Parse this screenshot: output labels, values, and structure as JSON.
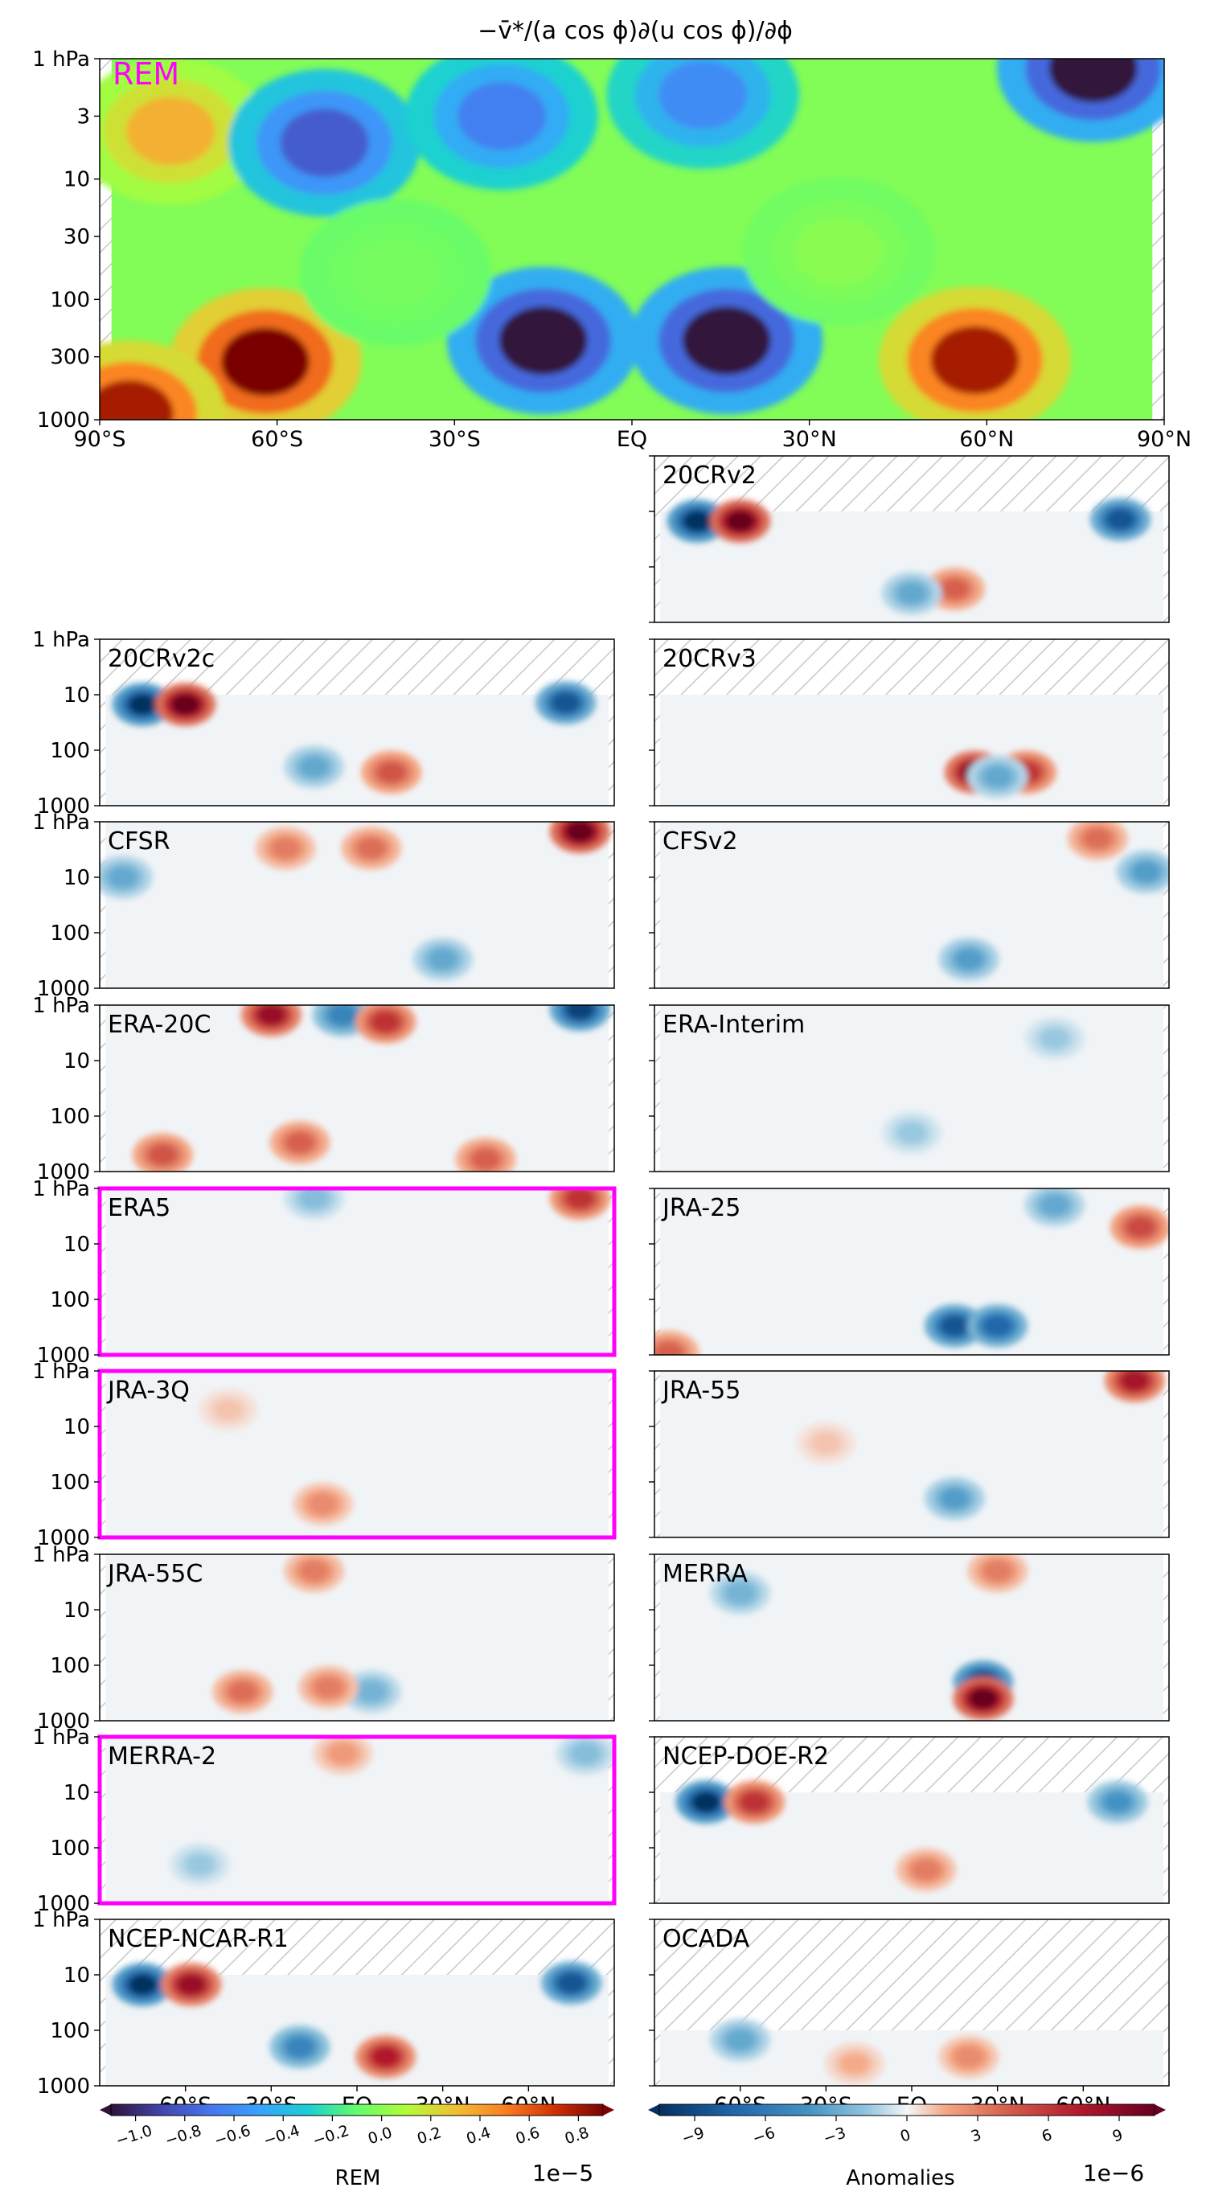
{
  "chart_data": {
    "type": "heatmap",
    "title": "−v̄*/(a cos ϕ)∂(u cos ϕ)/∂ϕ",
    "x_ticks": [
      "90°S",
      "60°S",
      "30°S",
      "EQ",
      "30°N",
      "60°N",
      "90°N"
    ],
    "x_ticks_small": [
      "60°S",
      "30°S",
      "EQ",
      "30°N",
      "60°N"
    ],
    "y_ticks": [
      "1 hPa",
      "3",
      "10",
      "30",
      "100",
      "300",
      "1000"
    ],
    "y_ticks_small": [
      "1 hPa",
      "10",
      "100",
      "1000"
    ],
    "ylim_hPa": [
      1000,
      1
    ],
    "y_scale": "log",
    "xlim_lat": [
      -90,
      90
    ],
    "main_panel": {
      "label": "REM",
      "blobs": [
        {
          "lat": -78,
          "p": 4,
          "v": 0.45
        },
        {
          "lat": -52,
          "p": 5,
          "v": -0.7
        },
        {
          "lat": -22,
          "p": 3,
          "v": -0.55
        },
        {
          "lat": 12,
          "p": 2,
          "v": -0.5
        },
        {
          "lat": 78,
          "p": 1.2,
          "v": -1.0
        },
        {
          "lat": -15,
          "p": 220,
          "v": -1.0
        },
        {
          "lat": 16,
          "p": 220,
          "v": -1.0
        },
        {
          "lat": -62,
          "p": 330,
          "v": 1.0
        },
        {
          "lat": -85,
          "p": 900,
          "v": 0.9
        },
        {
          "lat": 58,
          "p": 320,
          "v": 0.9
        },
        {
          "lat": 35,
          "p": 40,
          "v": 0.1
        },
        {
          "lat": -40,
          "p": 60,
          "v": 0.05
        }
      ]
    },
    "panels": [
      {
        "name": "20CRv2",
        "highlight": false,
        "top_hPa": 10,
        "blobs": [
          {
            "lat": -75,
            "p": 15,
            "v": -1.0
          },
          {
            "lat": -60,
            "p": 15,
            "v": 1.0
          },
          {
            "lat": 73,
            "p": 14,
            "v": -0.8
          },
          {
            "lat": 15,
            "p": 250,
            "v": 0.4
          },
          {
            "lat": 0,
            "p": 300,
            "v": -0.3
          }
        ]
      },
      {
        "name": "20CRv2c",
        "highlight": false,
        "top_hPa": 10,
        "blobs": [
          {
            "lat": -75,
            "p": 15,
            "v": -1.0
          },
          {
            "lat": -60,
            "p": 15,
            "v": 1.0
          },
          {
            "lat": 73,
            "p": 14,
            "v": -0.8
          },
          {
            "lat": 12,
            "p": 250,
            "v": 0.45
          },
          {
            "lat": -15,
            "p": 200,
            "v": -0.3
          }
        ]
      },
      {
        "name": "20CRv3",
        "highlight": false,
        "top_hPa": 10,
        "blobs": [
          {
            "lat": 22,
            "p": 250,
            "v": 0.9
          },
          {
            "lat": 40,
            "p": 250,
            "v": 0.6
          },
          {
            "lat": 30,
            "p": 300,
            "v": -0.3
          }
        ]
      },
      {
        "name": "CFSR",
        "highlight": false,
        "top_hPa": 1,
        "blobs": [
          {
            "lat": 78,
            "p": 1.5,
            "v": 1.0
          },
          {
            "lat": -82,
            "p": 10,
            "v": -0.3
          },
          {
            "lat": 5,
            "p": 3,
            "v": 0.35
          },
          {
            "lat": -25,
            "p": 3,
            "v": 0.3
          },
          {
            "lat": 30,
            "p": 300,
            "v": -0.3
          }
        ]
      },
      {
        "name": "CFSv2",
        "highlight": false,
        "top_hPa": 1,
        "blobs": [
          {
            "lat": 82,
            "p": 8,
            "v": -0.35
          },
          {
            "lat": 65,
            "p": 2,
            "v": 0.35
          },
          {
            "lat": 20,
            "p": 300,
            "v": -0.35
          }
        ]
      },
      {
        "name": "ERA-20C",
        "highlight": false,
        "top_hPa": 1,
        "blobs": [
          {
            "lat": 78,
            "p": 1.2,
            "v": -0.9
          },
          {
            "lat": -30,
            "p": 1.5,
            "v": 0.8
          },
          {
            "lat": -5,
            "p": 1.5,
            "v": -0.5
          },
          {
            "lat": 10,
            "p": 2,
            "v": 0.6
          },
          {
            "lat": -68,
            "p": 500,
            "v": 0.45
          },
          {
            "lat": -20,
            "p": 300,
            "v": 0.4
          },
          {
            "lat": 45,
            "p": 600,
            "v": 0.4
          }
        ]
      },
      {
        "name": "ERA-Interim",
        "highlight": false,
        "top_hPa": 1,
        "blobs": [
          {
            "lat": 0,
            "p": 200,
            "v": -0.15
          },
          {
            "lat": 50,
            "p": 4,
            "v": -0.15
          }
        ]
      },
      {
        "name": "ERA5",
        "highlight": true,
        "top_hPa": 1,
        "blobs": [
          {
            "lat": 78,
            "p": 1.5,
            "v": 0.6
          },
          {
            "lat": -15,
            "p": 1.5,
            "v": -0.2
          }
        ]
      },
      {
        "name": "JRA-25",
        "highlight": false,
        "top_hPa": 1,
        "blobs": [
          {
            "lat": 15,
            "p": 300,
            "v": -0.8
          },
          {
            "lat": 30,
            "p": 300,
            "v": -0.7
          },
          {
            "lat": 80,
            "p": 5,
            "v": 0.5
          },
          {
            "lat": 50,
            "p": 2,
            "v": -0.3
          },
          {
            "lat": -85,
            "p": 900,
            "v": 0.4
          }
        ]
      },
      {
        "name": "JRA-3Q",
        "highlight": true,
        "top_hPa": 1,
        "blobs": [
          {
            "lat": -12,
            "p": 250,
            "v": 0.25
          },
          {
            "lat": -45,
            "p": 5,
            "v": 0.1
          }
        ]
      },
      {
        "name": "JRA-55",
        "highlight": false,
        "top_hPa": 1,
        "blobs": [
          {
            "lat": 78,
            "p": 1.5,
            "v": 0.75
          },
          {
            "lat": 15,
            "p": 200,
            "v": -0.35
          },
          {
            "lat": -30,
            "p": 20,
            "v": 0.1
          }
        ]
      },
      {
        "name": "JRA-55C",
        "highlight": false,
        "top_hPa": 1,
        "blobs": [
          {
            "lat": -15,
            "p": 2,
            "v": 0.3
          },
          {
            "lat": -40,
            "p": 300,
            "v": 0.35
          },
          {
            "lat": 5,
            "p": 300,
            "v": -0.25
          },
          {
            "lat": -10,
            "p": 250,
            "v": 0.3
          }
        ]
      },
      {
        "name": "MERRA",
        "highlight": false,
        "top_hPa": 1,
        "blobs": [
          {
            "lat": 25,
            "p": 200,
            "v": -0.9
          },
          {
            "lat": 25,
            "p": 400,
            "v": 1.0
          },
          {
            "lat": -60,
            "p": 5,
            "v": -0.25
          },
          {
            "lat": 30,
            "p": 2,
            "v": 0.3
          }
        ]
      },
      {
        "name": "MERRA-2",
        "highlight": true,
        "top_hPa": 1,
        "blobs": [
          {
            "lat": -5,
            "p": 2,
            "v": 0.2
          },
          {
            "lat": 80,
            "p": 2,
            "v": -0.2
          },
          {
            "lat": -55,
            "p": 200,
            "v": -0.15
          }
        ]
      },
      {
        "name": "NCEP-DOE-R2",
        "highlight": false,
        "top_hPa": 10,
        "blobs": [
          {
            "lat": -72,
            "p": 15,
            "v": -1.0
          },
          {
            "lat": -55,
            "p": 15,
            "v": 0.6
          },
          {
            "lat": 72,
            "p": 15,
            "v": -0.4
          },
          {
            "lat": 5,
            "p": 250,
            "v": 0.3
          }
        ]
      },
      {
        "name": "NCEP-NCAR-R1",
        "highlight": false,
        "top_hPa": 10,
        "blobs": [
          {
            "lat": -75,
            "p": 15,
            "v": -1.0
          },
          {
            "lat": -58,
            "p": 15,
            "v": 0.8
          },
          {
            "lat": 75,
            "p": 14,
            "v": -0.8
          },
          {
            "lat": 10,
            "p": 300,
            "v": 0.7
          },
          {
            "lat": -20,
            "p": 200,
            "v": -0.5
          }
        ]
      },
      {
        "name": "OCADA",
        "highlight": false,
        "top_hPa": 100,
        "blobs": [
          {
            "lat": -60,
            "p": 150,
            "v": -0.3
          },
          {
            "lat": 20,
            "p": 300,
            "v": 0.25
          },
          {
            "lat": -20,
            "p": 400,
            "v": 0.15
          }
        ]
      }
    ],
    "colorbar_rem": {
      "ticks": [
        "−1.0",
        "−0.8",
        "−0.6",
        "−0.4",
        "−0.2",
        "0.0",
        "0.2",
        "0.4",
        "0.6",
        "0.8"
      ],
      "label": "REM",
      "scale": "1e−5"
    },
    "colorbar_anom": {
      "ticks": [
        "−9",
        "−6",
        "−3",
        "0",
        "3",
        "6",
        "9"
      ],
      "label": "Anomalies",
      "scale": "1e−6"
    },
    "colors": {
      "highlight": "#ff00ff"
    }
  }
}
